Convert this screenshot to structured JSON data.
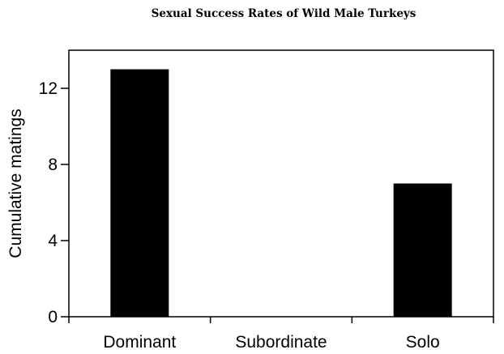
{
  "chart_data": {
    "type": "bar",
    "title": "Sexual Success Rates of Wild Male Turkeys",
    "xlabel": "",
    "ylabel": "Cumulative matings",
    "categories": [
      "Dominant",
      "Subordinate",
      "Solo"
    ],
    "values": [
      13,
      0,
      7
    ],
    "ylim": [
      0,
      14
    ],
    "yticks": [
      0,
      4,
      8,
      12
    ],
    "ytick_labels": [
      "0",
      "4",
      "8",
      "12"
    ],
    "grid": false,
    "bar_color": "#000000",
    "axis_color": "#000000"
  }
}
